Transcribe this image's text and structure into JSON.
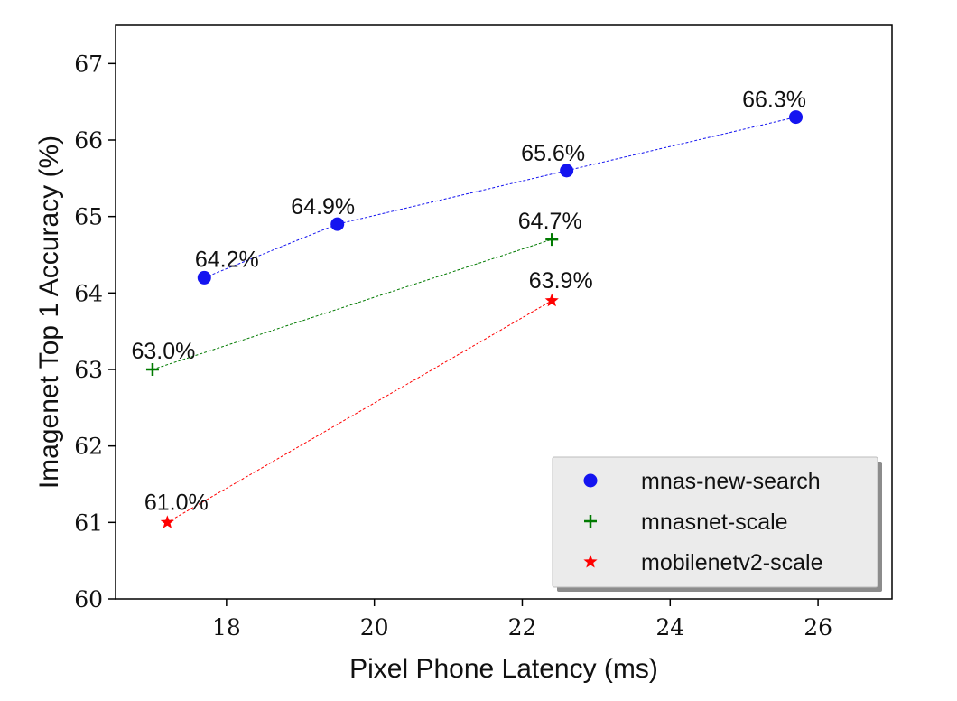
{
  "chart_data": {
    "type": "line",
    "title": "",
    "xlabel": "Pixel Phone Latency (ms)",
    "ylabel": "Imagenet Top 1 Accuracy (%)",
    "xlim": [
      16.5,
      27
    ],
    "ylim": [
      60,
      67.5
    ],
    "xticks": [
      18,
      20,
      22,
      24,
      26
    ],
    "yticks": [
      60,
      61,
      62,
      63,
      64,
      65,
      66,
      67
    ],
    "legend_position": "bottom-right",
    "series": [
      {
        "name": "mnas-new-search",
        "marker": "circle",
        "color": "#1414f0",
        "x": [
          17.7,
          19.5,
          22.6,
          25.7
        ],
        "y": [
          64.2,
          64.9,
          65.6,
          66.3
        ],
        "labels": [
          "64.2%",
          "64.9%",
          "65.6%",
          "66.3%"
        ]
      },
      {
        "name": "mnasnet-scale",
        "marker": "plus",
        "color": "#007a00",
        "x": [
          17.0,
          22.4
        ],
        "y": [
          63.0,
          64.7
        ],
        "labels": [
          "63.0%",
          "64.7%"
        ]
      },
      {
        "name": "mobilenetv2-scale",
        "marker": "star",
        "color": "#ff0000",
        "x": [
          17.2,
          22.4
        ],
        "y": [
          61.0,
          63.9
        ],
        "labels": [
          "61.0%",
          "63.9%"
        ]
      }
    ]
  }
}
